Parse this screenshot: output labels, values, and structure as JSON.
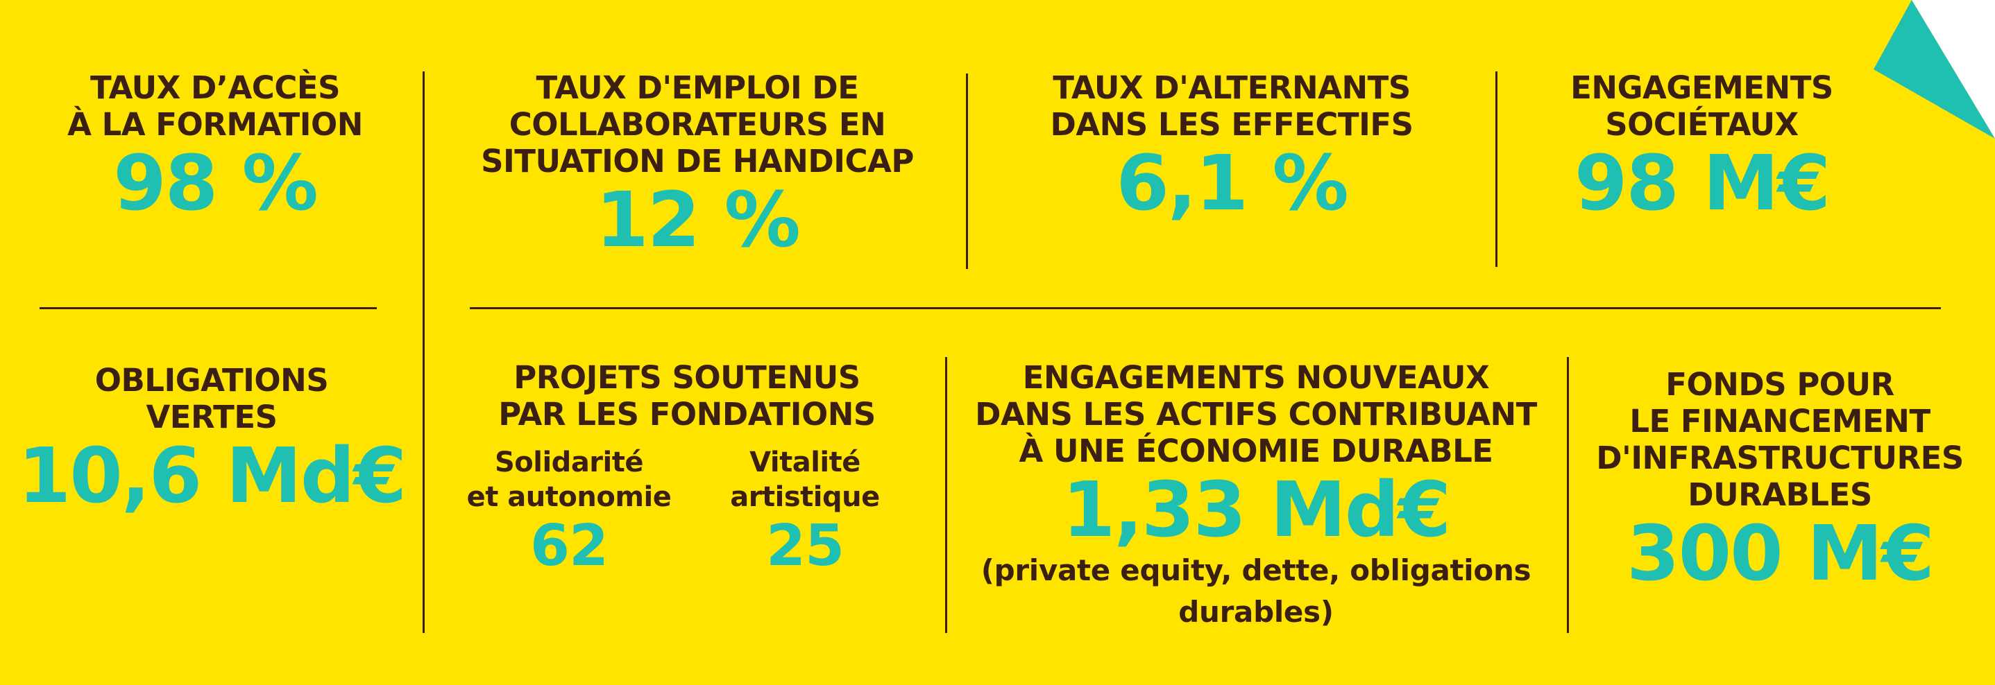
{
  "colors": {
    "background": "#FFE400",
    "text": "#3A1F12",
    "accent": "#1FBFB2"
  },
  "corner_icon": "teal-fold-triangle",
  "top_row": [
    {
      "label_lines": [
        "TAUX D’ACCÈS",
        "À LA FORMATION"
      ],
      "value": "98 %"
    },
    {
      "label_lines": [
        "TAUX D'EMPLOI DE",
        "COLLABORATEURS EN",
        "SITUATION DE HANDICAP"
      ],
      "value": "12 %"
    },
    {
      "label_lines": [
        "TAUX D'ALTERNANTS",
        "DANS LES EFFECTIFS"
      ],
      "value": "6,1 %"
    },
    {
      "label_lines": [
        "ENGAGEMENTS",
        "SOCIÉTAUX"
      ],
      "value": "98 M€"
    }
  ],
  "bottom_row": {
    "obligations": {
      "label_lines": [
        "OBLIGATIONS",
        "VERTES"
      ],
      "value": "10,6 Md€"
    },
    "fondations": {
      "label_lines": [
        "PROJETS SOUTENUS",
        "PAR LES FONDATIONS"
      ],
      "items": [
        {
          "label_lines": [
            "Solidarité",
            "et autonomie"
          ],
          "value": "62"
        },
        {
          "label_lines": [
            "Vitalité",
            "artistique"
          ],
          "value": "25"
        }
      ]
    },
    "engagements": {
      "label_lines": [
        "ENGAGEMENTS NOUVEAUX",
        "DANS LES ACTIFS CONTRIBUANT",
        "À UNE ÉCONOMIE DURABLE"
      ],
      "value": "1,33 Md€",
      "note_lines": [
        "(private equity, dette, obligations",
        "durables)"
      ]
    },
    "fonds": {
      "label_lines": [
        "FONDS POUR",
        "LE FINANCEMENT",
        "D'INFRASTRUCTURES",
        "DURABLES"
      ],
      "value": "300 M€"
    }
  }
}
